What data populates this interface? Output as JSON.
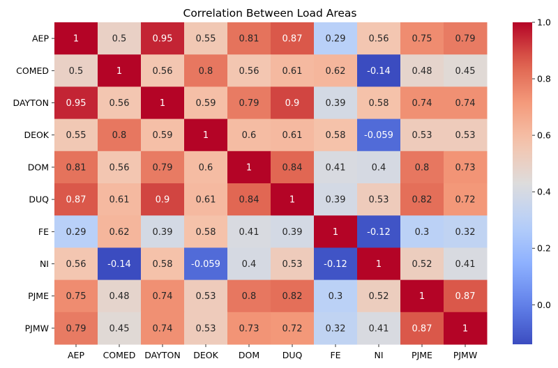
{
  "chart_data": {
    "type": "heatmap",
    "title": "Correlation Between Load Areas",
    "xlabel": "",
    "ylabel": "",
    "x_categories": [
      "AEP",
      "COMED",
      "DAYTON",
      "DEOK",
      "DOM",
      "DUQ",
      "FE",
      "NI",
      "PJME",
      "PJMW"
    ],
    "y_categories": [
      "AEP",
      "COMED",
      "DAYTON",
      "DEOK",
      "DOM",
      "DUQ",
      "FE",
      "NI",
      "PJME",
      "PJMW"
    ],
    "values": [
      [
        1,
        0.5,
        0.95,
        0.55,
        0.81,
        0.87,
        0.29,
        0.56,
        0.75,
        0.79
      ],
      [
        0.5,
        1,
        0.56,
        0.8,
        0.56,
        0.61,
        0.62,
        -0.14,
        0.48,
        0.45
      ],
      [
        0.95,
        0.56,
        1,
        0.59,
        0.79,
        0.9,
        0.39,
        0.58,
        0.74,
        0.74
      ],
      [
        0.55,
        0.8,
        0.59,
        1,
        0.6,
        0.61,
        0.58,
        -0.059,
        0.53,
        0.53
      ],
      [
        0.81,
        0.56,
        0.79,
        0.6,
        1,
        0.84,
        0.41,
        0.4,
        0.8,
        0.73
      ],
      [
        0.87,
        0.61,
        0.9,
        0.61,
        0.84,
        1,
        0.39,
        0.53,
        0.82,
        0.72
      ],
      [
        0.29,
        0.62,
        0.39,
        0.58,
        0.41,
        0.39,
        1,
        -0.12,
        0.3,
        0.32
      ],
      [
        0.56,
        -0.14,
        0.58,
        -0.059,
        0.4,
        0.53,
        -0.12,
        1,
        0.52,
        0.41
      ],
      [
        0.75,
        0.48,
        0.74,
        0.53,
        0.8,
        0.82,
        0.3,
        0.52,
        1,
        0.87
      ],
      [
        0.79,
        0.45,
        0.74,
        0.53,
        0.73,
        0.72,
        0.32,
        0.41,
        0.87,
        1
      ]
    ],
    "colormap": "coolwarm",
    "vmin": -0.14,
    "vmax": 1,
    "annotated": true,
    "colorbar": {
      "ticks": [
        0.0,
        0.2,
        0.4,
        0.6,
        0.8,
        1.0
      ],
      "tick_labels": [
        "0.0",
        "0.2",
        "0.4",
        "0.6",
        "0.8",
        "1.0"
      ],
      "placement": "right"
    },
    "grid": false
  }
}
